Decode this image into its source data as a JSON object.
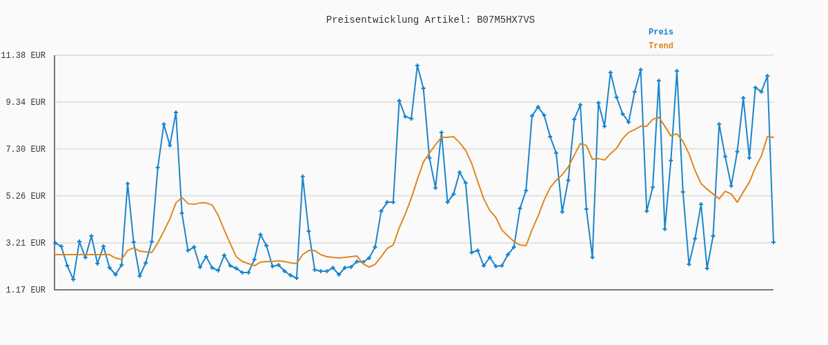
{
  "chart_data": {
    "type": "line",
    "title": "Preisentwicklung Artikel: B07M5HX7VS",
    "categories": [
      null,
      null,
      null,
      null,
      null,
      null,
      null,
      null,
      null,
      null,
      null,
      null,
      null,
      null,
      null,
      null,
      null,
      null,
      null,
      null,
      null,
      null,
      null,
      null,
      null,
      null,
      null,
      null,
      null,
      null,
      null,
      null,
      null,
      null,
      null,
      null,
      null,
      null,
      null,
      null,
      null,
      null,
      null,
      null,
      null,
      null,
      null,
      null,
      null,
      null,
      null,
      null,
      null,
      null,
      null,
      null,
      null,
      null,
      null,
      null,
      null,
      null,
      null,
      null,
      null,
      null,
      null,
      null,
      null,
      null,
      null,
      null,
      null,
      null,
      null,
      null,
      null,
      null,
      null,
      null,
      null,
      null,
      null,
      null,
      null,
      null,
      null,
      null,
      null,
      null,
      null,
      null,
      null,
      null,
      null,
      null,
      null,
      null,
      null,
      null,
      null,
      null,
      null,
      null,
      null,
      null,
      null,
      null,
      null,
      null,
      null,
      null,
      null,
      null,
      null,
      null,
      null,
      null,
      null,
      null
    ],
    "ylim": [
      1.17,
      11.38
    ],
    "yticks": [
      {
        "value": 1.17,
        "label": "1.17 EUR"
      },
      {
        "value": 3.21,
        "label": "3.21 EUR"
      },
      {
        "value": 5.26,
        "label": "5.26 EUR"
      },
      {
        "value": 7.3,
        "label": "7.30 EUR"
      },
      {
        "value": 9.34,
        "label": "9.34 EUR"
      },
      {
        "value": 11.38,
        "label": "11.38 EUR"
      }
    ],
    "grid": "y",
    "legend": "top right",
    "series": [
      {
        "name": "Preis",
        "color": "#1a84cc",
        "marker": "cross",
        "values": [
          3.21,
          3.06,
          2.22,
          1.62,
          3.27,
          2.58,
          3.51,
          2.31,
          3.06,
          2.13,
          1.83,
          2.25,
          5.79,
          3.24,
          1.77,
          2.34,
          3.27,
          6.49,
          8.38,
          7.45,
          8.89,
          4.5,
          2.88,
          3.03,
          2.16,
          2.61,
          2.13,
          2.01,
          2.67,
          2.22,
          2.1,
          1.92,
          1.92,
          2.49,
          3.57,
          3.09,
          2.19,
          2.25,
          1.98,
          1.8,
          1.68,
          6.1,
          3.72,
          2.04,
          1.98,
          1.98,
          2.13,
          1.83,
          2.13,
          2.16,
          2.4,
          2.37,
          2.55,
          3.03,
          4.59,
          4.98,
          4.98,
          9.4,
          8.71,
          8.62,
          10.93,
          9.94,
          6.91,
          5.61,
          8.02,
          4.98,
          5.34,
          6.28,
          5.82,
          2.79,
          2.88,
          2.22,
          2.58,
          2.19,
          2.22,
          2.7,
          3.03,
          4.71,
          5.49,
          8.74,
          9.13,
          8.77,
          7.84,
          7.12,
          4.56,
          5.94,
          8.59,
          9.22,
          4.68,
          2.58,
          9.31,
          8.29,
          10.63,
          9.55,
          8.83,
          8.47,
          9.79,
          10.75,
          4.59,
          5.64,
          10.27,
          3.81,
          6.79,
          10.69,
          5.43,
          2.28,
          3.39,
          4.89,
          2.1,
          3.51,
          8.38,
          6.97,
          5.7,
          7.18,
          9.52,
          6.91,
          9.97,
          9.79,
          10.48,
          3.24
        ]
      },
      {
        "name": "Trend",
        "color": "#e0861a",
        "marker": "none",
        "values": [
          2.7,
          2.7,
          2.7,
          2.7,
          2.7,
          2.7,
          2.7,
          2.7,
          2.7,
          2.7,
          2.55,
          2.49,
          2.88,
          3.0,
          2.85,
          2.82,
          2.79,
          3.21,
          3.72,
          4.26,
          4.95,
          5.19,
          4.92,
          4.89,
          4.95,
          4.95,
          4.86,
          4.41,
          3.78,
          3.18,
          2.61,
          2.4,
          2.31,
          2.22,
          2.37,
          2.4,
          2.4,
          2.43,
          2.4,
          2.34,
          2.31,
          2.7,
          2.88,
          2.88,
          2.7,
          2.61,
          2.58,
          2.55,
          2.58,
          2.61,
          2.64,
          2.31,
          2.16,
          2.28,
          2.61,
          2.97,
          3.12,
          3.87,
          4.47,
          5.16,
          5.97,
          6.73,
          7.12,
          7.48,
          7.81,
          7.81,
          7.84,
          7.57,
          7.24,
          6.67,
          5.88,
          5.13,
          4.62,
          4.32,
          3.78,
          3.51,
          3.27,
          3.12,
          3.09,
          3.78,
          4.38,
          5.07,
          5.62,
          5.94,
          6.18,
          6.52,
          7.03,
          7.54,
          7.45,
          6.85,
          6.88,
          6.82,
          7.09,
          7.33,
          7.75,
          8.02,
          8.14,
          8.29,
          8.29,
          8.59,
          8.68,
          8.29,
          7.87,
          7.96,
          7.63,
          7.09,
          6.37,
          5.79,
          5.55,
          5.34,
          5.13,
          5.46,
          5.34,
          4.98,
          5.43,
          5.85,
          6.49,
          7.0,
          7.84,
          7.81
        ]
      }
    ]
  }
}
